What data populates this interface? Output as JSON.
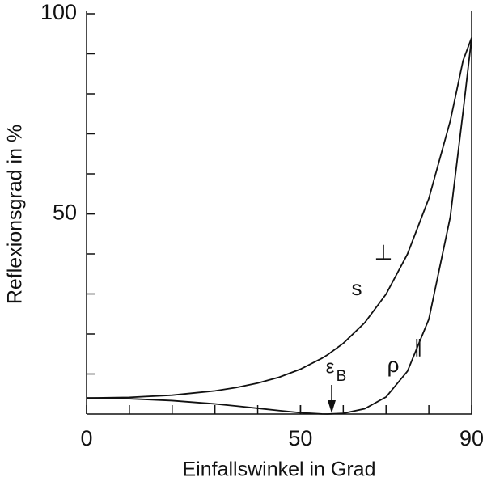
{
  "chart_data": {
    "type": "line",
    "x_label": "Einfallswinkel in Grad",
    "y_label": "Reflexionsgrad in %",
    "x": [
      0,
      10,
      20,
      30,
      35,
      40,
      45,
      50,
      55,
      56.3,
      60,
      65,
      70,
      75,
      80,
      85,
      88,
      90
    ],
    "series": [
      {
        "color": "#111111",
        "values": [
          4,
          4.16,
          4.71,
          5.78,
          6.61,
          7.72,
          9.2,
          11.21,
          13.93,
          14.77,
          17.66,
          22.79,
          29.95,
          39.96,
          53.86,
          73.19,
          88.3,
          94
        ]
      },
      {
        "color": "#111111",
        "values": [
          4,
          3.83,
          3.35,
          2.53,
          2.0,
          1.43,
          0.85,
          0.33,
          0.02,
          0,
          0.18,
          1.3,
          4.25,
          10.7,
          23.69,
          49.18,
          75.5,
          94
        ]
      }
    ],
    "xlim": [
      0,
      90
    ],
    "ylim": [
      0,
      100
    ],
    "xticks": [
      0,
      50,
      90
    ],
    "yticks": [
      50,
      100
    ],
    "xminor_ticks": [
      10,
      20,
      30,
      40,
      50,
      60,
      70,
      80
    ],
    "yminor_ticks": [
      10,
      20,
      30,
      40,
      50,
      60,
      70,
      80,
      90
    ],
    "annotations": [
      "s",
      "⊥",
      "ρ",
      "∥",
      "ε",
      "B"
    ]
  }
}
